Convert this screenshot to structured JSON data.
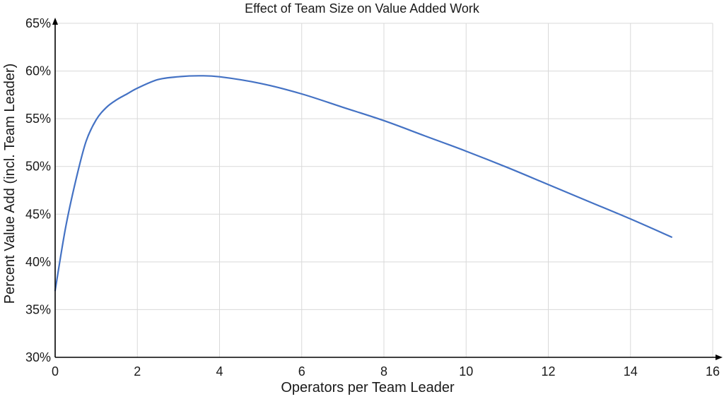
{
  "chart_data": {
    "type": "line",
    "title": "Effect of Team Size on Value Added Work",
    "xlabel": "Operators per Team Leader",
    "ylabel": "Percent Value Add (incl. Team Leader)",
    "xlim": [
      0,
      16
    ],
    "ylim": [
      30,
      65
    ],
    "x_ticks": [
      "0",
      "2",
      "4",
      "6",
      "8",
      "10",
      "12",
      "14",
      "16"
    ],
    "y_ticks": [
      "30%",
      "35%",
      "40%",
      "45%",
      "50%",
      "55%",
      "60%",
      "65%"
    ],
    "grid": true,
    "legend": "none",
    "series": [
      {
        "color": "#4472c4",
        "x": [
          0,
          0.25,
          0.5,
          0.75,
          1.0,
          1.25,
          1.5,
          1.75,
          2.0,
          2.5,
          3.0,
          3.5,
          4.0,
          5.0,
          6.0,
          7.0,
          8.0,
          9.0,
          10.0,
          11.0,
          12.0,
          13.0,
          14.0,
          15.0
        ],
        "y": [
          37.0,
          43.5,
          48.5,
          52.6,
          54.9,
          56.2,
          57.0,
          57.6,
          58.2,
          59.1,
          59.4,
          59.5,
          59.4,
          58.7,
          57.6,
          56.2,
          54.8,
          53.2,
          51.6,
          49.9,
          48.1,
          46.3,
          44.5,
          42.6
        ]
      }
    ]
  }
}
